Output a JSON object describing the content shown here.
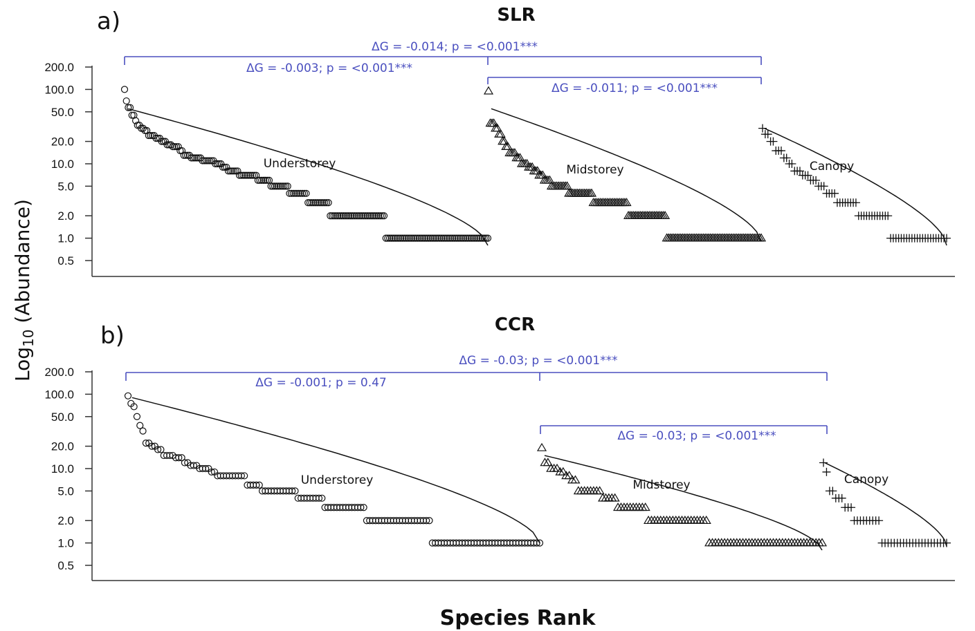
{
  "chart_data": [
    {
      "type": "scatter",
      "panel": "a)",
      "title": "SLR",
      "ylabel_main": "Log",
      "ylabel_sub": "10",
      "ylabel_rest": " (Abundance)",
      "xlabel": "Species Rank",
      "y_scale": "log",
      "ylim": [
        0.4,
        220
      ],
      "y_ticks": [
        "200.0",
        "100.0",
        "50.0",
        "20.0",
        "10.0",
        "5.0",
        "2.0",
        "1.0",
        "0.5"
      ],
      "y_tick_values": [
        200,
        100,
        50,
        20,
        10,
        5,
        2,
        1,
        0.5
      ],
      "series": [
        {
          "name": "Understorey",
          "marker": "circle",
          "x_start": 180,
          "x_end": 705,
          "fit": {
            "y_start": 55,
            "y_end": 0.8
          },
          "steps": [
            [
              100,
              1
            ],
            [
              70,
              1
            ],
            [
              57,
              2
            ],
            [
              45,
              2
            ],
            [
              38,
              1
            ],
            [
              33,
              2
            ],
            [
              30,
              2
            ],
            [
              28,
              2
            ],
            [
              24,
              4
            ],
            [
              22,
              3
            ],
            [
              20,
              3
            ],
            [
              18,
              3
            ],
            [
              17,
              4
            ],
            [
              15,
              2
            ],
            [
              13,
              4
            ],
            [
              12,
              6
            ],
            [
              11,
              7
            ],
            [
              10,
              4
            ],
            [
              9,
              3
            ],
            [
              8,
              6
            ],
            [
              7,
              10
            ],
            [
              6,
              7
            ],
            [
              5,
              10
            ],
            [
              4,
              10
            ],
            [
              3,
              12
            ],
            [
              2,
              30
            ],
            [
              1,
              56
            ]
          ]
        },
        {
          "name": "Midstorey",
          "marker": "triangle",
          "x_start": 706,
          "x_end": 1100,
          "fit": {
            "y_start": 55,
            "y_end": 0.9
          },
          "steps": [
            [
              95,
              1
            ],
            [
              35,
              3
            ],
            [
              30,
              2
            ],
            [
              25,
              2
            ],
            [
              20,
              2
            ],
            [
              17,
              2
            ],
            [
              14,
              4
            ],
            [
              12,
              3
            ],
            [
              10,
              4
            ],
            [
              9,
              3
            ],
            [
              8,
              3
            ],
            [
              7,
              3
            ],
            [
              6,
              4
            ],
            [
              5,
              10
            ],
            [
              4,
              14
            ],
            [
              3,
              20
            ],
            [
              2,
              22
            ],
            [
              1,
              55
            ]
          ]
        },
        {
          "name": "Canopy",
          "marker": "plus",
          "x_start": 1102,
          "x_end": 1368,
          "fit": {
            "y_start": 30,
            "y_end": 0.8
          },
          "steps": [
            [
              30,
              1
            ],
            [
              25,
              2
            ],
            [
              20,
              2
            ],
            [
              15,
              3
            ],
            [
              12,
              2
            ],
            [
              10,
              2
            ],
            [
              8,
              3
            ],
            [
              7,
              3
            ],
            [
              6,
              3
            ],
            [
              5,
              3
            ],
            [
              4,
              4
            ],
            [
              3,
              8
            ],
            [
              2,
              12
            ],
            [
              1,
              22
            ]
          ]
        }
      ],
      "comparisons": [
        {
          "label": "ΔG = -0.014; p = <0.001***",
          "from": "Understorey",
          "to": "Canopy"
        },
        {
          "label": "ΔG = -0.003; p = <0.001***",
          "from": "Understorey",
          "to": "Midstorey"
        },
        {
          "label": "ΔG = -0.011; p = <0.001***",
          "from": "Midstorey",
          "to": "Canopy"
        }
      ]
    },
    {
      "type": "scatter",
      "panel": "b)",
      "title": "CCR",
      "xlabel": "Species Rank",
      "y_scale": "log",
      "ylim": [
        0.4,
        220
      ],
      "y_ticks": [
        "200.0",
        "100.0",
        "50.0",
        "20.0",
        "10.0",
        "5.0",
        "2.0",
        "1.0",
        "0.5"
      ],
      "y_tick_values": [
        200,
        100,
        50,
        20,
        10,
        5,
        2,
        1,
        0.5
      ],
      "series": [
        {
          "name": "Understorey",
          "marker": "circle",
          "x_start": 185,
          "x_end": 780,
          "fit": {
            "y_start": 90,
            "y_end": 1.0
          },
          "steps": [
            [
              95,
              1
            ],
            [
              75,
              1
            ],
            [
              68,
              1
            ],
            [
              50,
              1
            ],
            [
              38,
              1
            ],
            [
              32,
              1
            ],
            [
              22,
              2
            ],
            [
              20,
              2
            ],
            [
              18,
              2
            ],
            [
              15,
              4
            ],
            [
              14,
              3
            ],
            [
              12,
              2
            ],
            [
              11,
              3
            ],
            [
              10,
              4
            ],
            [
              9,
              2
            ],
            [
              8,
              10
            ],
            [
              6,
              5
            ],
            [
              5,
              12
            ],
            [
              4,
              9
            ],
            [
              3,
              14
            ],
            [
              2,
              22
            ],
            [
              1,
              37
            ]
          ]
        },
        {
          "name": "Midstorey",
          "marker": "triangle",
          "x_start": 783,
          "x_end": 1188,
          "fit": {
            "y_start": 15,
            "y_end": 0.8
          },
          "steps": [
            [
              19,
              1
            ],
            [
              12,
              2
            ],
            [
              10,
              3
            ],
            [
              9,
              2
            ],
            [
              8,
              2
            ],
            [
              7,
              2
            ],
            [
              5,
              8
            ],
            [
              4,
              5
            ],
            [
              3,
              10
            ],
            [
              2,
              20
            ],
            [
              1,
              38
            ]
          ]
        },
        {
          "name": "Canopy",
          "marker": "plus",
          "x_start": 1190,
          "x_end": 1368,
          "fit": {
            "y_start": 12,
            "y_end": 0.9
          },
          "steps": [
            [
              12,
              1
            ],
            [
              9,
              1
            ],
            [
              5,
              2
            ],
            [
              4,
              3
            ],
            [
              3,
              3
            ],
            [
              2,
              9
            ],
            [
              1,
              22
            ]
          ]
        }
      ],
      "comparisons": [
        {
          "label": "ΔG = -0.03; p = <0.001***",
          "from": "Understorey",
          "to": "Canopy"
        },
        {
          "label": "ΔG = -0.001; p = 0.47",
          "from": "Understorey",
          "to": "Midstorey"
        },
        {
          "label": "ΔG = -0.03; p = <0.001***",
          "from": "Midstorey",
          "to": "Canopy"
        }
      ]
    }
  ]
}
